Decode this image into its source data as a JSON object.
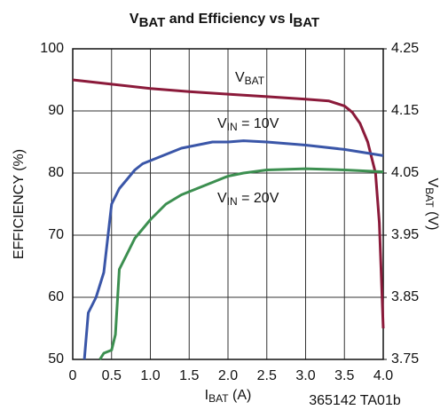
{
  "chart_data": {
    "type": "line",
    "title": [
      {
        "text": "V"
      },
      {
        "text": "BAT",
        "sub": true
      },
      {
        "text": " and Efficiency vs I"
      },
      {
        "text": "BAT",
        "sub": true
      }
    ],
    "x_label": [
      {
        "text": "I"
      },
      {
        "text": "BAT",
        "sub": true
      },
      {
        "text": " (A)"
      }
    ],
    "y_label": "EFFICIENCY (%)",
    "y2_label": [
      {
        "text": "V"
      },
      {
        "text": "BAT",
        "sub": true
      },
      {
        "text": " (V)"
      }
    ],
    "note": "365142 TA01b",
    "xlim": [
      0,
      4
    ],
    "xticks": [
      0,
      0.5,
      {
        "value": 1,
        "label": "1.0"
      },
      1.5,
      {
        "value": 2,
        "label": "2.0"
      },
      2.5,
      {
        "value": 3,
        "label": "3.0"
      },
      3.5,
      {
        "value": 4,
        "label": "4.0"
      }
    ],
    "ylim": [
      50,
      100
    ],
    "yticks": [
      50,
      60,
      70,
      80,
      90,
      100
    ],
    "y2lim": [
      3.75,
      4.25
    ],
    "y2ticks": [
      3.75,
      3.85,
      3.95,
      4.05,
      4.15,
      4.25
    ],
    "grid": true,
    "series": [
      {
        "name": [
          {
            "text": "V"
          },
          {
            "text": "BAT",
            "sub": true
          }
        ],
        "color": "#8b1a3a",
        "axis": "y2",
        "x": [
          0,
          0.5,
          1.0,
          1.5,
          2.0,
          2.5,
          3.0,
          3.3,
          3.5,
          3.6,
          3.7,
          3.8,
          3.9,
          3.95,
          4.0
        ],
        "values": [
          4.2,
          4.193,
          4.186,
          4.181,
          4.177,
          4.173,
          4.169,
          4.166,
          4.158,
          4.148,
          4.13,
          4.1,
          4.05,
          3.97,
          3.8
        ]
      },
      {
        "name": [
          {
            "text": "V"
          },
          {
            "text": "IN",
            "sub": true
          },
          {
            "text": " = 10V"
          }
        ],
        "color": "#3a56a8",
        "x": [
          0.15,
          0.2,
          0.3,
          0.4,
          0.5,
          0.6,
          0.7,
          0.8,
          0.9,
          1.0,
          1.2,
          1.4,
          1.6,
          1.8,
          2.0,
          2.2,
          2.5,
          3.0,
          3.5,
          4.0
        ],
        "values": [
          50,
          57.5,
          60,
          64,
          75,
          77.5,
          79,
          80.5,
          81.5,
          82,
          83,
          84,
          84.5,
          85,
          85,
          85.2,
          85,
          84.5,
          83.8,
          82.8
        ]
      },
      {
        "name": [
          {
            "text": "V"
          },
          {
            "text": "IN",
            "sub": true
          },
          {
            "text": " = 20V"
          }
        ],
        "color": "#3c8f50",
        "x": [
          0.35,
          0.4,
          0.5,
          0.55,
          0.6,
          0.7,
          0.8,
          0.9,
          1.0,
          1.2,
          1.4,
          1.6,
          1.8,
          2.0,
          2.2,
          2.5,
          3.0,
          3.5,
          4.0
        ],
        "values": [
          50,
          51,
          51.5,
          54,
          64.5,
          67,
          69.5,
          71,
          72.5,
          75,
          76.5,
          77.5,
          78.5,
          79.5,
          80,
          80.5,
          80.7,
          80.5,
          80.2
        ]
      }
    ]
  }
}
